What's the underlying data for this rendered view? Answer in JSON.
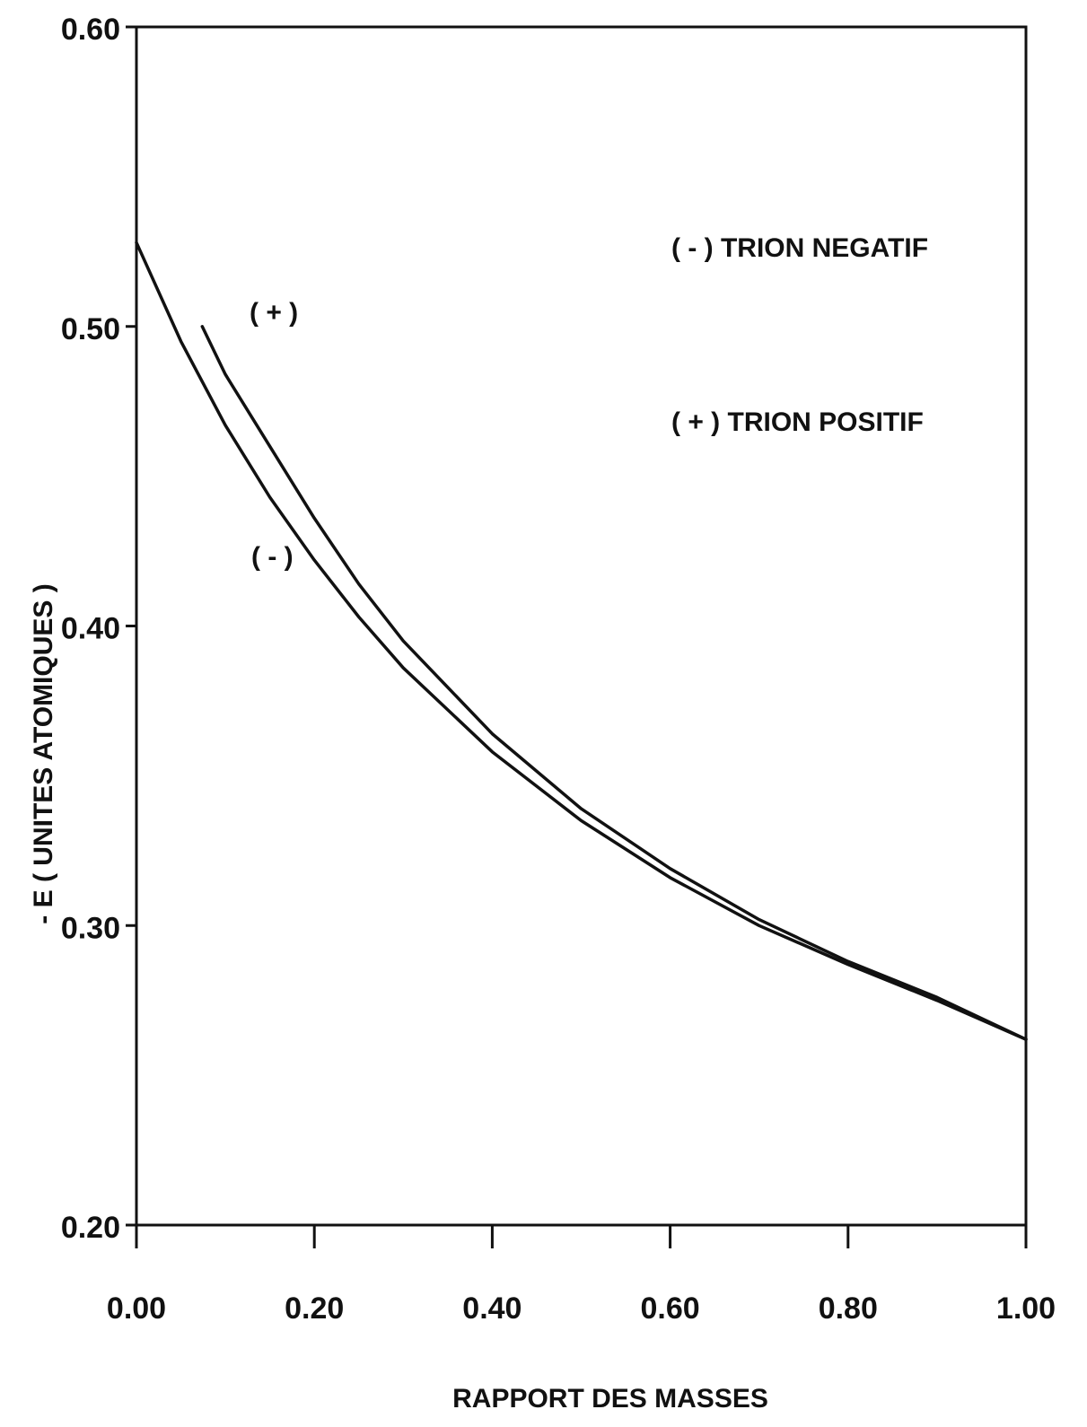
{
  "chart_data": {
    "type": "line",
    "title": "",
    "xlabel": "RAPPORT DES MASSES",
    "ylabel": "- E ( UNITES ATOMIQUES )",
    "xlim": [
      0.0,
      1.0
    ],
    "ylim": [
      0.2,
      0.6
    ],
    "x_ticks": [
      "0.00",
      "0.20",
      "0.40",
      "0.60",
      "0.80",
      "1.00"
    ],
    "y_ticks": [
      "0.20",
      "0.30",
      "0.40",
      "0.50",
      "0.60"
    ],
    "grid": false,
    "legend": {
      "position": "top-right",
      "entries": [
        "( - ) TRION NEGATIF",
        "( + ) TRION POSITIF"
      ]
    },
    "curve_labels": [
      "( + )",
      "( - )"
    ],
    "series": [
      {
        "name": "( - ) TRION NEGATIF",
        "x": [
          0.0,
          0.05,
          0.1,
          0.15,
          0.2,
          0.25,
          0.3,
          0.4,
          0.5,
          0.6,
          0.7,
          0.8,
          0.9,
          1.0
        ],
        "y": [
          0.528,
          0.495,
          0.467,
          0.443,
          0.422,
          0.403,
          0.386,
          0.358,
          0.335,
          0.316,
          0.3,
          0.287,
          0.275,
          0.262
        ]
      },
      {
        "name": "( + ) TRION POSITIF",
        "x": [
          0.074,
          0.1,
          0.15,
          0.2,
          0.25,
          0.3,
          0.4,
          0.5,
          0.6,
          0.7,
          0.8,
          0.9,
          1.0
        ],
        "y": [
          0.5,
          0.484,
          0.46,
          0.436,
          0.414,
          0.395,
          0.364,
          0.339,
          0.319,
          0.302,
          0.288,
          0.276,
          0.262
        ]
      }
    ]
  }
}
